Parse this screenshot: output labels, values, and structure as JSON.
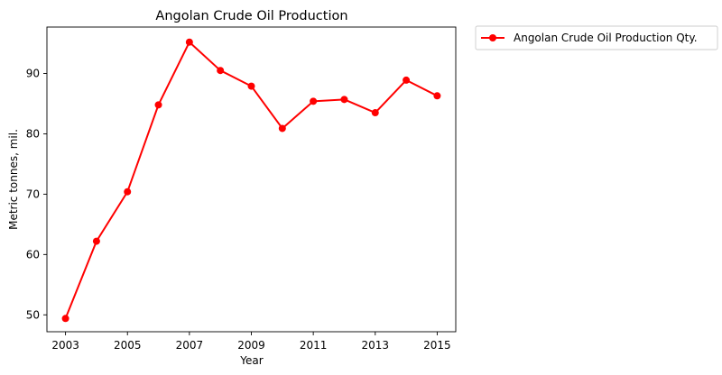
{
  "chart_data": {
    "type": "line",
    "title": "Angolan Crude Oil Production",
    "xlabel": "Year",
    "ylabel": "Metric tonnes, mil.",
    "x": [
      2003,
      2004,
      2005,
      2006,
      2007,
      2008,
      2009,
      2010,
      2011,
      2012,
      2013,
      2014,
      2015
    ],
    "x_ticks": [
      "2003",
      "2005",
      "2007",
      "2009",
      "2011",
      "2013",
      "2015"
    ],
    "y_ticks": [
      "50",
      "60",
      "70",
      "80",
      "90"
    ],
    "xlim": [
      2002.4,
      2015.6
    ],
    "ylim": [
      47.2,
      97.7
    ],
    "grid": false,
    "legend_position": "outside-upper-right",
    "series": [
      {
        "name": "Angolan Crude Oil Production Qty.",
        "color": "#ff0000",
        "marker": "circle",
        "values": [
          49.4,
          62.2,
          70.4,
          84.8,
          95.2,
          90.5,
          87.9,
          80.9,
          85.4,
          85.7,
          83.5,
          88.9,
          86.3
        ]
      }
    ]
  }
}
